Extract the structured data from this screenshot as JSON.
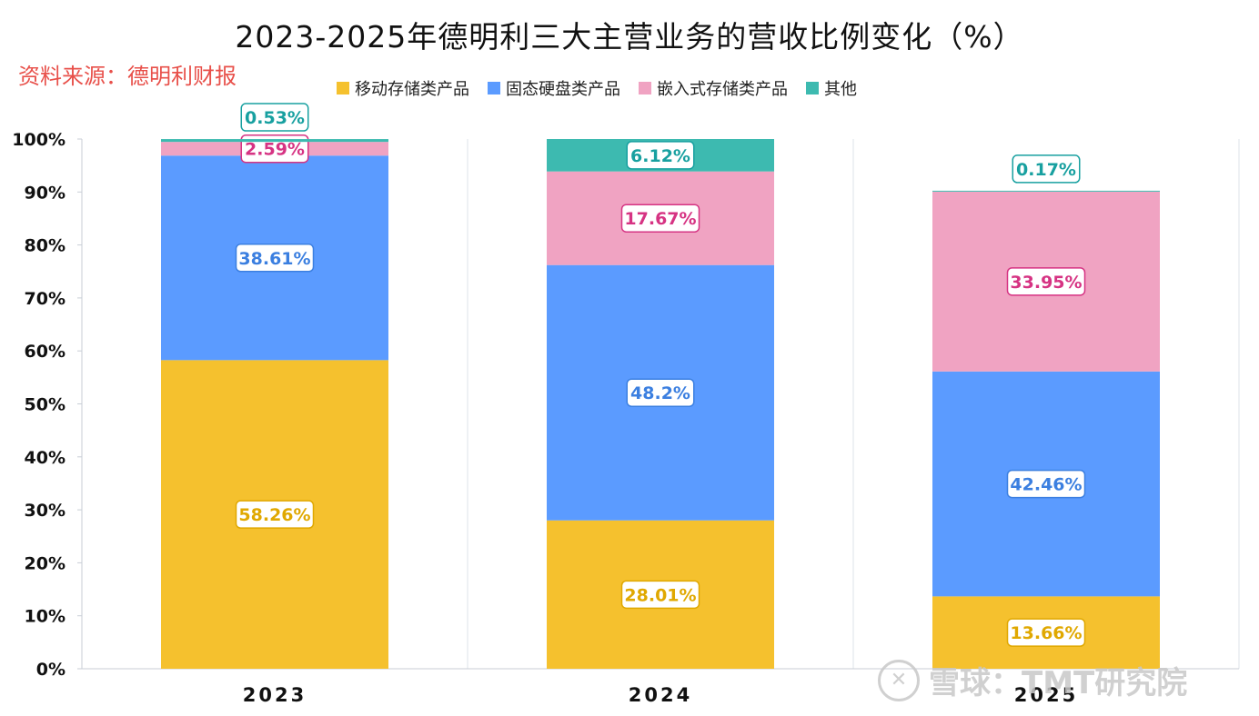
{
  "title": "2023-2025年德明利三大主营业务的营收比例变化（%）",
  "source": "资料来源：德明利财报",
  "watermark": "雪球：TMT研究院",
  "chart_data": {
    "type": "bar",
    "stacked": true,
    "title": "2023-2025年德明利三大主营业务的营收比例变化（%）",
    "categories": [
      "2023",
      "2024",
      "2025"
    ],
    "ylim": [
      0,
      100
    ],
    "yticks": [
      0,
      10,
      20,
      30,
      40,
      50,
      60,
      70,
      80,
      90,
      100
    ],
    "ytick_labels": [
      "0%",
      "10%",
      "20%",
      "30%",
      "40%",
      "50%",
      "60%",
      "70%",
      "80%",
      "90%",
      "100%"
    ],
    "legend_position": "top",
    "series": [
      {
        "name": "移动存储类产品",
        "color": "#f5c12e",
        "text_color": "#e0a800",
        "values": [
          58.26,
          28.01,
          13.66
        ],
        "labels": [
          "58.26%",
          "28.01%",
          "13.66%"
        ]
      },
      {
        "name": "固态硬盘类产品",
        "color": "#5b9bff",
        "text_color": "#3b7fe0",
        "values": [
          38.61,
          48.2,
          42.46
        ],
        "labels": [
          "38.61%",
          "48.2%",
          "42.46%"
        ]
      },
      {
        "name": "嵌入式存储类产品",
        "color": "#f0a3c2",
        "text_color": "#d63383",
        "values": [
          2.59,
          17.67,
          33.95
        ],
        "labels": [
          "2.59%",
          "17.67%",
          "33.95%"
        ]
      },
      {
        "name": "其他",
        "color": "#3dbab0",
        "text_color": "#18a0a0",
        "values": [
          0.53,
          6.12,
          0.17
        ],
        "labels": [
          "0.53%",
          "6.12%",
          "0.17%"
        ]
      }
    ]
  }
}
